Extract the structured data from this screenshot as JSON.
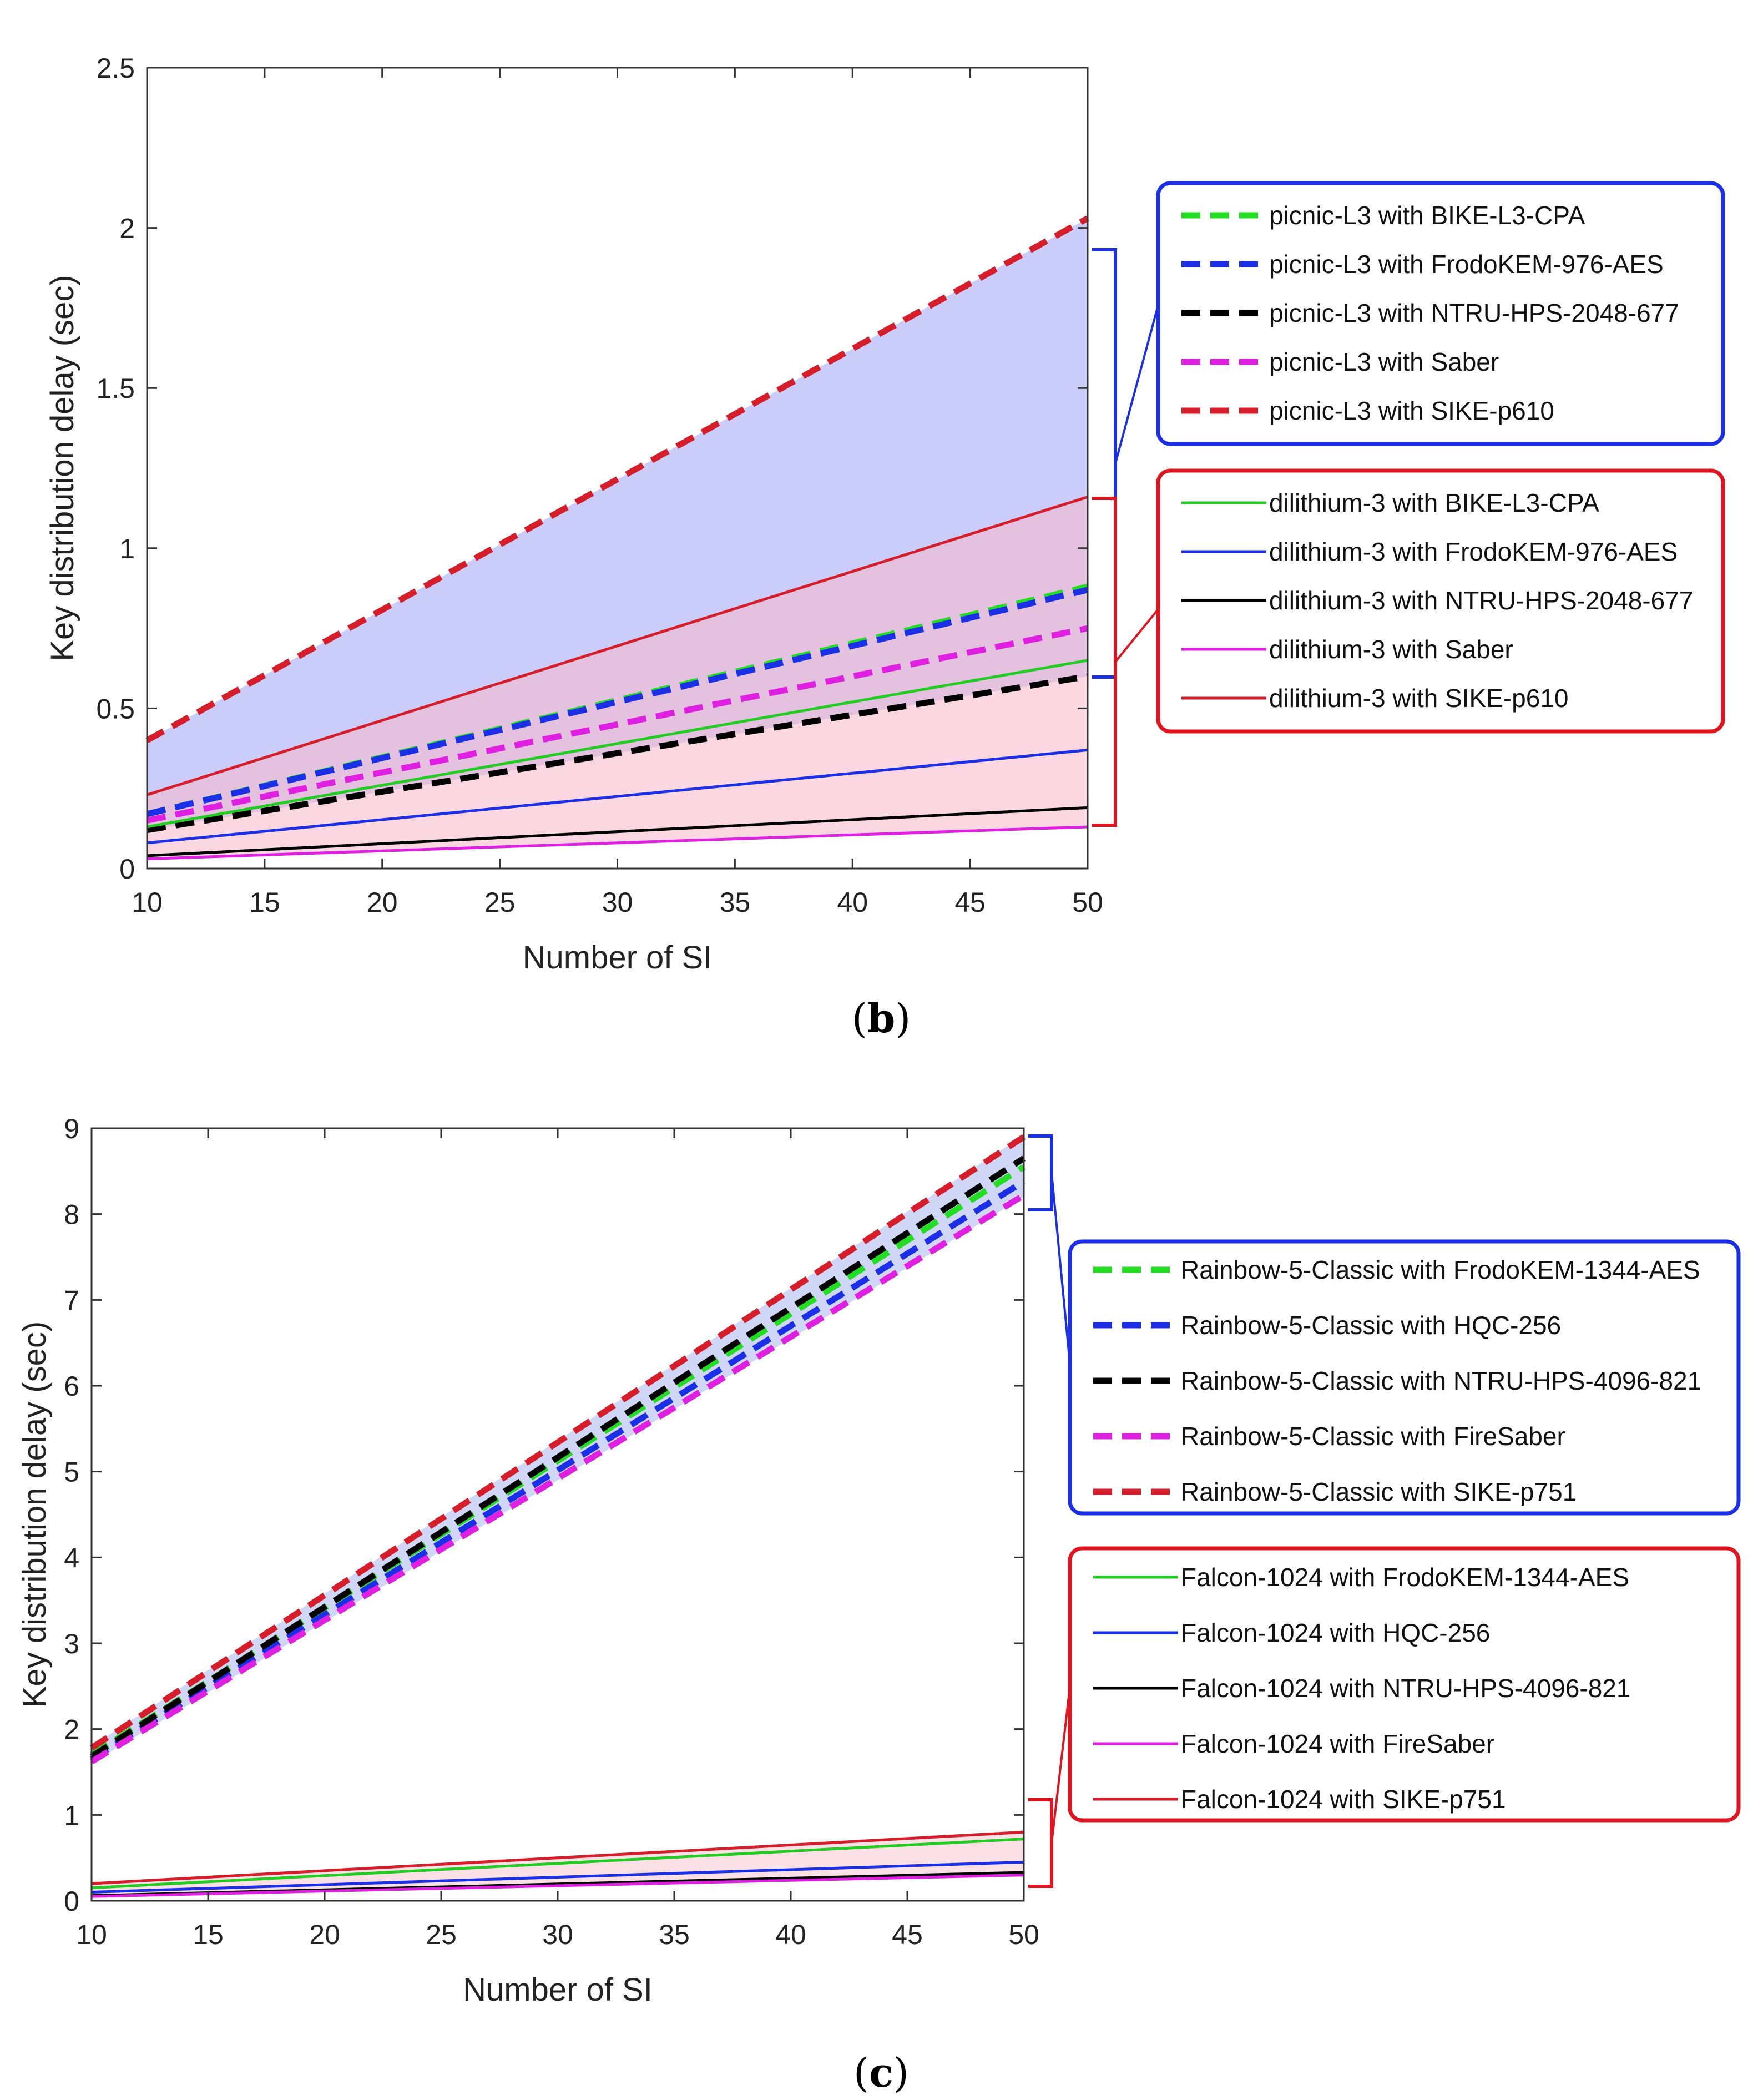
{
  "chart_data": [
    {
      "panel": "b",
      "type": "line",
      "panel_label": {
        "open": "(",
        "letter": "b",
        "close": ")"
      },
      "xlabel": "Number of SI",
      "ylabel": "Key distribution delay (sec)",
      "xlim": [
        10,
        50
      ],
      "ylim": [
        0,
        2.5
      ],
      "xticks": [
        10,
        15,
        20,
        25,
        30,
        35,
        40,
        45,
        50
      ],
      "xtick_labels": [
        "10",
        "15",
        "20",
        "25",
        "30",
        "35",
        "40",
        "45",
        "50"
      ],
      "yticks": [
        0,
        0.5,
        1,
        1.5,
        2,
        2.5
      ],
      "ytick_labels": [
        "0",
        "0.5",
        "1",
        "1.5",
        "2",
        "2.5"
      ],
      "x": [
        10,
        50
      ],
      "bands": [
        {
          "group": "dashed",
          "color": "#9ea4f5",
          "lower": [
            0.12,
            0.6
          ],
          "upper": [
            0.4,
            2.03
          ],
          "x": [
            10,
            50
          ]
        },
        {
          "group": "solid",
          "color": "#f7b8c8",
          "lower": [
            0.03,
            0.13
          ],
          "upper": [
            0.23,
            1.16
          ],
          "x": [
            10,
            50
          ]
        }
      ],
      "series": [
        {
          "name": "picnic-L3 with BIKE-L3-CPA",
          "style": "dashed",
          "color": "#22dd22",
          "values": [
            0.17,
            0.88
          ]
        },
        {
          "name": "picnic-L3 with FrodoKEM-976-AES",
          "style": "dashed",
          "color": "#1a2fe6",
          "values": [
            0.17,
            0.87
          ]
        },
        {
          "name": "picnic-L3 with NTRU-HPS-2048-677",
          "style": "dashed",
          "color": "#000000",
          "values": [
            0.12,
            0.6
          ]
        },
        {
          "name": "picnic-L3 with Saber",
          "style": "dashed",
          "color": "#e020e0",
          "values": [
            0.15,
            0.75
          ]
        },
        {
          "name": "picnic-L3 with SIKE-p610",
          "style": "dashed",
          "color": "#d61e2a",
          "values": [
            0.4,
            2.03
          ]
        },
        {
          "name": "dilithium-3 with BIKE-L3-CPA",
          "style": "solid",
          "color": "#22cc22",
          "values": [
            0.13,
            0.65
          ]
        },
        {
          "name": "dilithium-3 with FrodoKEM-976-AES",
          "style": "solid",
          "color": "#1a2fe6",
          "values": [
            0.08,
            0.37
          ]
        },
        {
          "name": "dilithium-3 with NTRU-HPS-2048-677",
          "style": "solid",
          "color": "#000000",
          "values": [
            0.04,
            0.19
          ]
        },
        {
          "name": "dilithium-3 with Saber",
          "style": "solid",
          "color": "#e020e0",
          "values": [
            0.03,
            0.13
          ]
        },
        {
          "name": "dilithium-3 with SIKE-p610",
          "style": "solid",
          "color": "#d61e2a",
          "values": [
            0.23,
            1.16
          ]
        }
      ],
      "legend_groups": [
        {
          "placement": "right-top",
          "box_color": "#1a2fe6",
          "series_index": [
            0,
            1,
            2,
            3,
            4
          ]
        },
        {
          "placement": "right-bottom",
          "box_color": "#e0141e",
          "series_index": [
            5,
            6,
            7,
            8,
            9
          ]
        }
      ]
    },
    {
      "panel": "c",
      "type": "line",
      "panel_label": {
        "open": "(",
        "letter": "c",
        "close": ")"
      },
      "xlabel": "Number of SI",
      "ylabel": "Key distribution delay (sec)",
      "xlim": [
        10,
        50
      ],
      "ylim": [
        0,
        9
      ],
      "xticks": [
        10,
        15,
        20,
        25,
        30,
        35,
        40,
        45,
        50
      ],
      "xtick_labels": [
        "10",
        "15",
        "20",
        "25",
        "30",
        "35",
        "40",
        "45",
        "50"
      ],
      "yticks": [
        0,
        1,
        2,
        3,
        4,
        5,
        6,
        7,
        8,
        9
      ],
      "ytick_labels": [
        "0",
        "1",
        "2",
        "3",
        "4",
        "5",
        "6",
        "7",
        "8",
        "9"
      ],
      "x": [
        10,
        50
      ],
      "bands": [
        {
          "group": "dashed",
          "color": "#a9b6ee",
          "lower": [
            1.6,
            8.2
          ],
          "upper": [
            1.8,
            8.92
          ],
          "x": [
            10,
            50
          ]
        },
        {
          "group": "solid",
          "color": "#f7c7d2",
          "lower": [
            0.04,
            0.28
          ],
          "upper": [
            0.2,
            0.82
          ],
          "x": [
            10,
            50
          ]
        }
      ],
      "series": [
        {
          "name": "Rainbow-5-Classic with FrodoKEM-1344-AES",
          "style": "dashed",
          "color": "#22dd22",
          "values": [
            1.7,
            8.55
          ]
        },
        {
          "name": "Rainbow-5-Classic with HQC-256",
          "style": "dashed",
          "color": "#1a2fe6",
          "values": [
            1.65,
            8.38
          ]
        },
        {
          "name": "Rainbow-5-Classic with NTRU-HPS-4096-821",
          "style": "dashed",
          "color": "#000000",
          "values": [
            1.68,
            8.65
          ]
        },
        {
          "name": "Rainbow-5-Classic with FireSaber",
          "style": "dashed",
          "color": "#e020e0",
          "values": [
            1.62,
            8.22
          ]
        },
        {
          "name": "Rainbow-5-Classic with SIKE-p751",
          "style": "dashed",
          "color": "#d61e2a",
          "values": [
            1.78,
            8.9
          ]
        },
        {
          "name": "Falcon-1024 with FrodoKEM-1344-AES",
          "style": "solid",
          "color": "#22cc22",
          "values": [
            0.15,
            0.72
          ]
        },
        {
          "name": "Falcon-1024 with HQC-256",
          "style": "solid",
          "color": "#1a2fe6",
          "values": [
            0.1,
            0.45
          ]
        },
        {
          "name": "Falcon-1024 with NTRU-HPS-4096-821",
          "style": "solid",
          "color": "#000000",
          "values": [
            0.06,
            0.33
          ]
        },
        {
          "name": "Falcon-1024 with FireSaber",
          "style": "solid",
          "color": "#e020e0",
          "values": [
            0.05,
            0.3
          ]
        },
        {
          "name": "Falcon-1024 with SIKE-p751",
          "style": "solid",
          "color": "#d61e2a",
          "values": [
            0.2,
            0.8
          ]
        }
      ],
      "legend_groups": [
        {
          "placement": "right-top",
          "box_color": "#1a2fe6",
          "series_index": [
            0,
            1,
            2,
            3,
            4
          ]
        },
        {
          "placement": "right-bottom",
          "box_color": "#e0141e",
          "series_index": [
            5,
            6,
            7,
            8,
            9
          ]
        }
      ]
    }
  ]
}
